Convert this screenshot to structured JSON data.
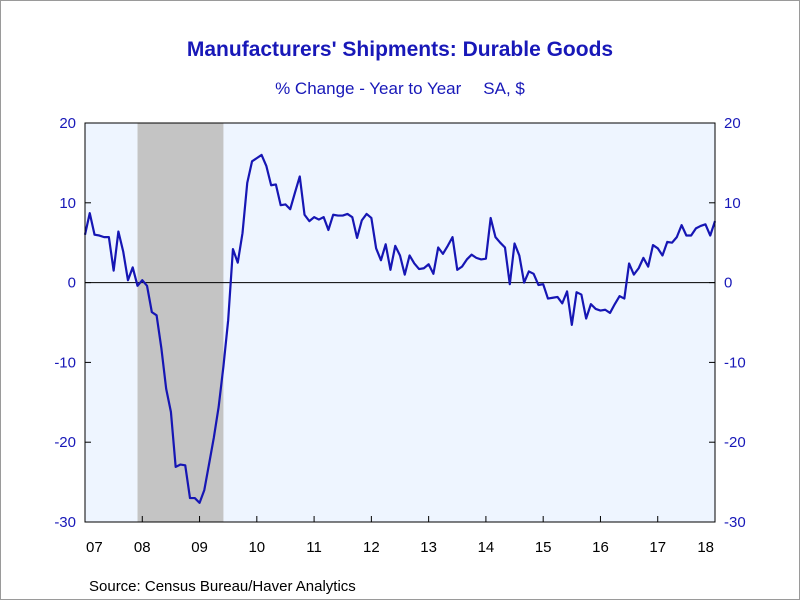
{
  "title": "Manufacturers' Shipments: Durable Goods",
  "subtitle_left": "% Change - Year to Year",
  "subtitle_right": "SA, $",
  "source": "Source:  Census Bureau/Haver Analytics",
  "colors": {
    "series": "#1616b4",
    "plot_bg": "#eef5ff",
    "recession": "#c4c4c4",
    "axis_text": "#1818b8"
  },
  "chart_data": {
    "type": "line",
    "title": "Manufacturers' Shipments: Durable Goods",
    "subtitle": "% Change - Year to Year    SA, $",
    "ylim": [
      -30,
      20
    ],
    "yticks": [
      -30,
      -20,
      -10,
      0,
      10,
      20
    ],
    "ytick_labels": [
      "-30",
      "-20",
      "-10",
      "0",
      "10",
      "20"
    ],
    "xlim": [
      2007.0,
      2018.0
    ],
    "xticks": [
      2007,
      2008,
      2009,
      2010,
      2011,
      2012,
      2013,
      2014,
      2015,
      2016,
      2017,
      2018
    ],
    "xtick_labels": [
      "07",
      "08",
      "09",
      "10",
      "11",
      "12",
      "13",
      "14",
      "15",
      "16",
      "17",
      "18"
    ],
    "right_axis": true,
    "zero_line": true,
    "recession": {
      "start": 2007.917,
      "end": 2009.417
    },
    "series": [
      {
        "x": [
          2007.0,
          2007.083,
          2007.167,
          2007.25,
          2007.333,
          2007.417,
          2007.5,
          2007.583,
          2007.667,
          2007.75,
          2007.833,
          2007.917,
          2008.0,
          2008.083,
          2008.167,
          2008.25,
          2008.333,
          2008.417,
          2008.5,
          2008.583,
          2008.667,
          2008.75,
          2008.833,
          2008.917,
          2009.0,
          2009.083,
          2009.167,
          2009.25,
          2009.333,
          2009.417,
          2009.5,
          2009.583,
          2009.667,
          2009.75,
          2009.833,
          2009.917,
          2010.0,
          2010.083,
          2010.167,
          2010.25,
          2010.333,
          2010.417,
          2010.5,
          2010.583,
          2010.667,
          2010.75,
          2010.833,
          2010.917,
          2011.0,
          2011.083,
          2011.167,
          2011.25,
          2011.333,
          2011.417,
          2011.5,
          2011.583,
          2011.667,
          2011.75,
          2011.833,
          2011.917,
          2012.0,
          2012.083,
          2012.167,
          2012.25,
          2012.333,
          2012.417,
          2012.5,
          2012.583,
          2012.667,
          2012.75,
          2012.833,
          2012.917,
          2013.0,
          2013.083,
          2013.167,
          2013.25,
          2013.333,
          2013.417,
          2013.5,
          2013.583,
          2013.667,
          2013.75,
          2013.833,
          2013.917,
          2014.0,
          2014.083,
          2014.167,
          2014.25,
          2014.333,
          2014.417,
          2014.5,
          2014.583,
          2014.667,
          2014.75,
          2014.833,
          2014.917,
          2015.0,
          2015.083,
          2015.167,
          2015.25,
          2015.333,
          2015.417,
          2015.5,
          2015.583,
          2015.667,
          2015.75,
          2015.833,
          2015.917,
          2016.0,
          2016.083,
          2016.167,
          2016.25,
          2016.333,
          2016.417,
          2016.5,
          2016.583,
          2016.667,
          2016.75,
          2016.833,
          2016.917,
          2017.0,
          2017.083,
          2017.167,
          2017.25,
          2017.333,
          2017.417,
          2017.5,
          2017.583,
          2017.667,
          2017.75,
          2017.833,
          2017.917,
          2018.0
        ],
        "values": [
          6.0,
          8.7,
          6.0,
          5.9,
          5.7,
          5.7,
          1.5,
          6.4,
          3.9,
          0.3,
          1.9,
          -0.4,
          0.3,
          -0.4,
          -3.7,
          -4.1,
          -8.2,
          -13.3,
          -16.2,
          -23.1,
          -22.8,
          -22.9,
          -27.0,
          -27.0,
          -27.6,
          -26.0,
          -22.7,
          -19.4,
          -15.6,
          -10.5,
          -4.7,
          4.2,
          2.5,
          6.2,
          12.5,
          15.2,
          15.6,
          16.0,
          14.6,
          12.2,
          12.3,
          9.7,
          9.8,
          9.2,
          11.3,
          13.3,
          8.5,
          7.7,
          8.2,
          7.9,
          8.2,
          6.6,
          8.5,
          8.4,
          8.4,
          8.6,
          8.2,
          5.6,
          7.8,
          8.6,
          8.1,
          4.3,
          2.8,
          4.8,
          1.6,
          4.6,
          3.4,
          1.0,
          3.4,
          2.4,
          1.7,
          1.8,
          2.3,
          1.1,
          4.4,
          3.6,
          4.6,
          5.7,
          1.6,
          2.0,
          2.9,
          3.5,
          3.1,
          2.9,
          3.0,
          8.1,
          5.7,
          5.0,
          4.4,
          -0.2,
          4.9,
          3.4,
          0.0,
          1.4,
          1.1,
          -0.3,
          -0.2,
          -2.0,
          -1.9,
          -1.8,
          -2.6,
          -1.1,
          -5.3,
          -1.2,
          -1.5,
          -4.5,
          -2.7,
          -3.3,
          -3.5,
          -3.4,
          -3.8,
          -2.7,
          -1.7,
          -2.0,
          2.4,
          1.0,
          1.8,
          3.1,
          2.0,
          4.7,
          4.3,
          3.4,
          5.1,
          5.0,
          5.7,
          7.2,
          5.9,
          5.9,
          6.8,
          7.1,
          7.3,
          5.9,
          7.7
        ]
      }
    ]
  }
}
